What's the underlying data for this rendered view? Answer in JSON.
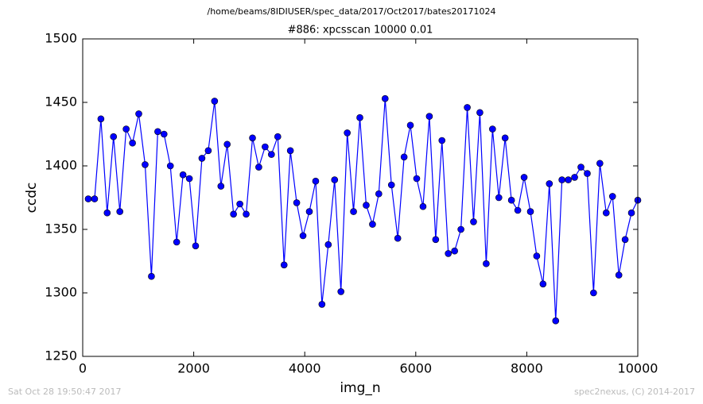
{
  "chart_data": {
    "type": "line",
    "suptitle": "/home/beams/8IDIUSER/spec_data/2017/Oct2017/bates20171024",
    "title": "#886: xpcsscan 10000 0.01",
    "xlabel": "img_n",
    "ylabel": "ccdc",
    "footer_left": "Sat Oct 28 19:50:47 2017",
    "footer_right": "spec2nexus, (C) 2014-2017",
    "x": [
      100,
      214,
      328,
      441,
      555,
      669,
      783,
      897,
      1010,
      1124,
      1238,
      1352,
      1465,
      1579,
      1693,
      1807,
      1921,
      2034,
      2148,
      2262,
      2376,
      2490,
      2603,
      2717,
      2831,
      2945,
      3059,
      3172,
      3286,
      3400,
      3514,
      3628,
      3741,
      3855,
      3969,
      4083,
      4197,
      4310,
      4424,
      4538,
      4652,
      4766,
      4879,
      4993,
      5107,
      5221,
      5334,
      5448,
      5562,
      5676,
      5790,
      5903,
      6017,
      6131,
      6245,
      6359,
      6472,
      6586,
      6700,
      6814,
      6928,
      7041,
      7155,
      7269,
      7383,
      7497,
      7610,
      7724,
      7838,
      7952,
      8066,
      8179,
      8293,
      8407,
      8521,
      8634,
      8748,
      8862,
      8976,
      9090,
      9203,
      9317,
      9431,
      9545,
      9659,
      9772,
      9886,
      10000
    ],
    "series": [
      {
        "color": "#0000ff",
        "values": [
          1374,
          1374,
          1437,
          1363,
          1423,
          1364,
          1429,
          1418,
          1441,
          1401,
          1313,
          1427,
          1425,
          1400,
          1340,
          1393,
          1390,
          1337,
          1406,
          1412,
          1451,
          1384,
          1417,
          1362,
          1370,
          1362,
          1422,
          1399,
          1415,
          1409,
          1423,
          1322,
          1412,
          1371,
          1345,
          1364,
          1388,
          1291,
          1338,
          1389,
          1301,
          1426,
          1364,
          1438,
          1369,
          1354,
          1378,
          1453,
          1385,
          1343,
          1407,
          1432,
          1390,
          1368,
          1439,
          1342,
          1420,
          1331,
          1333,
          1350,
          1446,
          1356,
          1442,
          1323,
          1429,
          1375,
          1422,
          1373,
          1365,
          1391,
          1364,
          1329,
          1307,
          1386,
          1278,
          1389,
          1389,
          1391,
          1399,
          1394,
          1300,
          1402,
          1363,
          1376,
          1314,
          1342,
          1363,
          1373
        ]
      }
    ],
    "xlim": [
      0,
      10000
    ],
    "xticks": [
      0,
      2000,
      4000,
      6000,
      8000,
      10000
    ],
    "ylim": [
      1250,
      1500
    ],
    "yticks": [
      1250,
      1300,
      1350,
      1400,
      1450,
      1500
    ]
  }
}
